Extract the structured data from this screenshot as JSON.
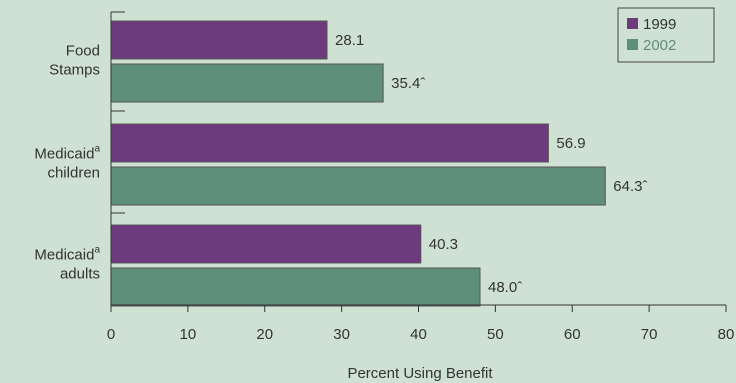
{
  "chart_data": {
    "type": "bar",
    "orientation": "horizontal",
    "categories": [
      {
        "line1": "Food",
        "line2": "Stamps",
        "sup": ""
      },
      {
        "line1": "Medicaid",
        "line2": "children",
        "sup": "a"
      },
      {
        "line1": "Medicaid",
        "line2": "adults",
        "sup": "a"
      }
    ],
    "series": [
      {
        "name": "1999",
        "color": "#6e3a7e",
        "values": [
          28.1,
          56.9,
          40.3
        ],
        "labels": [
          "28.1",
          "56.9",
          "40.3"
        ]
      },
      {
        "name": "2002",
        "color": "#5f8f7a",
        "values": [
          35.4,
          64.3,
          48.0
        ],
        "labels": [
          "35.4ˆ",
          "64.3ˆ",
          "48.0ˆ"
        ]
      }
    ],
    "xlabel": "Percent Using Benefit",
    "xlim": [
      0,
      80
    ],
    "xticks": [
      0,
      10,
      20,
      30,
      40,
      50,
      60,
      70,
      80
    ],
    "legend": "top-right",
    "grid": false
  }
}
